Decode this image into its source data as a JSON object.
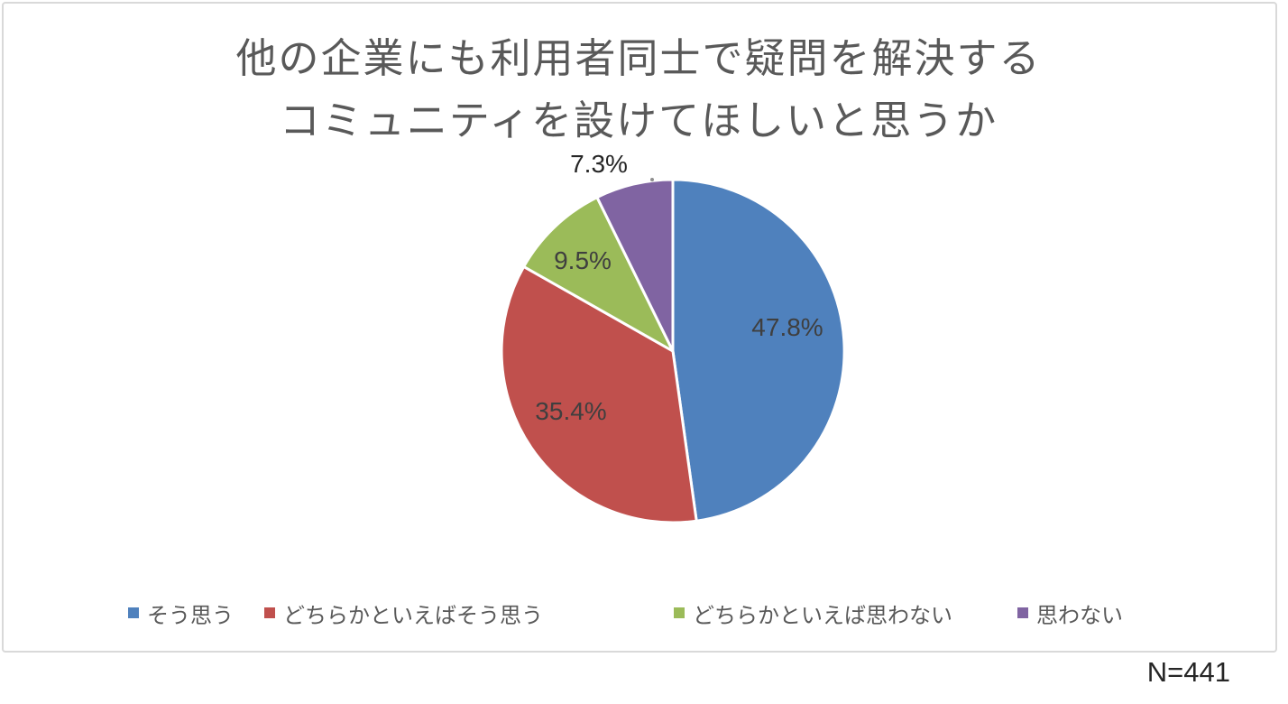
{
  "chart_data": {
    "type": "pie",
    "title": "他の企業にも利用者同士で疑問を解決するコミュニティを設けてほしいと思うか",
    "title_lines": [
      "他の企業にも利用者同士で疑問を解決する",
      "コミュニティを設けてほしいと思うか"
    ],
    "unit": "%",
    "start_angle_deg": 0,
    "direction": "clockwise",
    "legend_position": "bottom",
    "slices": [
      {
        "label": "そう思う",
        "value": 47.8,
        "display": "47.8%",
        "color": "#4F81BD",
        "label_placement": "inside"
      },
      {
        "label": "どちらかといえばそう思う",
        "value": 35.4,
        "display": "35.4%",
        "color": "#C0504D",
        "label_placement": "inside"
      },
      {
        "label": "どちらかといえば思わない",
        "value": 9.5,
        "display": "9.5%",
        "color": "#9BBB59",
        "label_placement": "inside"
      },
      {
        "label": "思わない",
        "value": 7.3,
        "display": "7.3%",
        "color": "#8064A2",
        "label_placement": "outside"
      }
    ],
    "footnote": "N=441"
  },
  "style": {
    "slice_border_color": "#FFFFFF",
    "title_color": "#595959",
    "data_label_color": "#3F3F3F",
    "legend_text_color": "#595959",
    "box_border_color": "#D9D9D9"
  }
}
